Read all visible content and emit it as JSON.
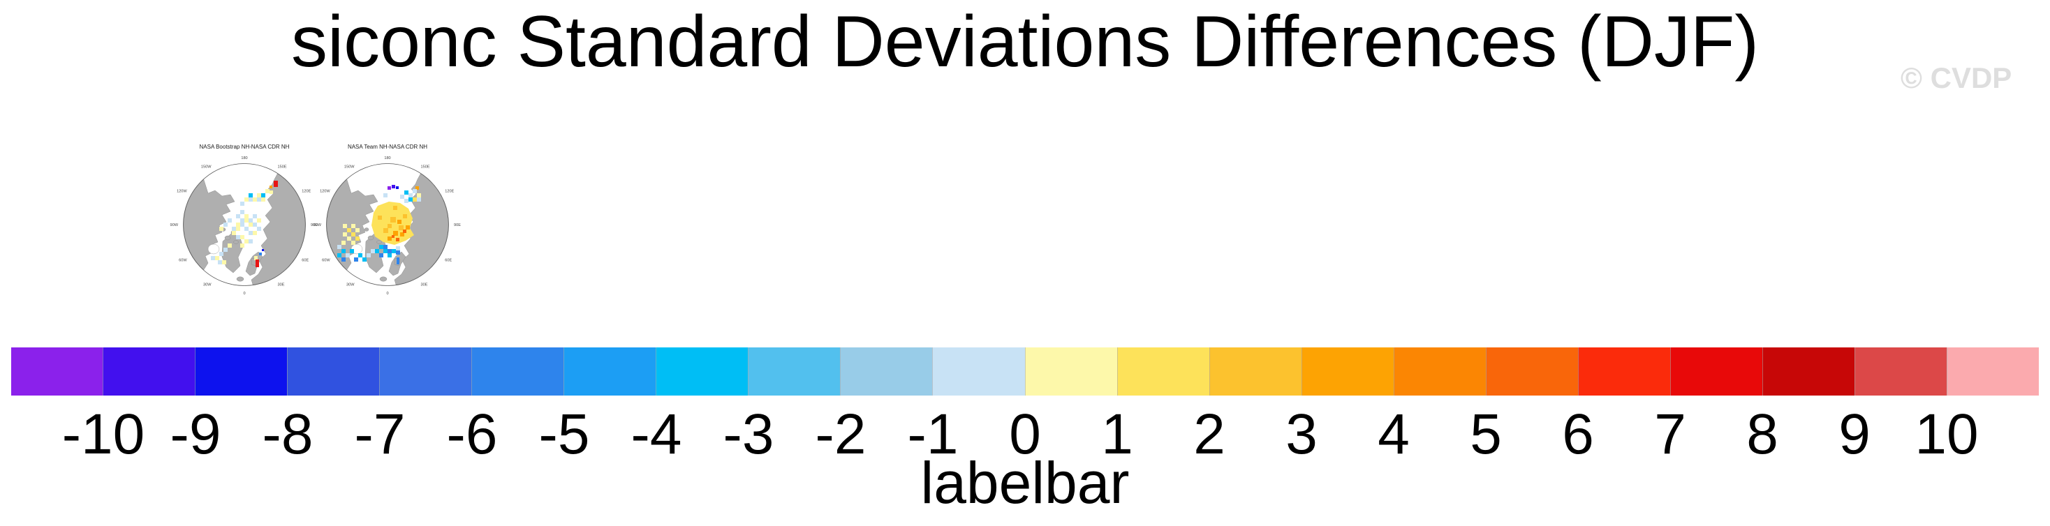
{
  "header": {
    "title": "siconc Standard Deviations Differences (DJF)",
    "watermark": "© CVDP"
  },
  "maps": [
    {
      "title": "NASA Bootstrap NH-NASA CDR NH",
      "lon_labels": [
        "180",
        "150E",
        "120E",
        "90E",
        "60E",
        "30E",
        "0",
        "30W",
        "60W",
        "90W",
        "120W",
        "150W"
      ]
    },
    {
      "title": "NASA Team NH-NASA CDR NH",
      "lon_labels": [
        "180",
        "150E",
        "120E",
        "90E",
        "60E",
        "30E",
        "0",
        "30W",
        "60W",
        "90W",
        "120W",
        "150W"
      ]
    }
  ],
  "colorbar": {
    "label": "labelbar",
    "ticks": [
      "-10",
      "-9",
      "-8",
      "-7",
      "-6",
      "-5",
      "-4",
      "-3",
      "-2",
      "-1",
      "0",
      "1",
      "2",
      "3",
      "4",
      "5",
      "6",
      "7",
      "8",
      "9",
      "10"
    ],
    "colors": [
      "#8B21EB",
      "#4210EE",
      "#0D12EE",
      "#3052E0",
      "#3A70E6",
      "#2E84EC",
      "#1C9EF4",
      "#00BEF5",
      "#52C0EE",
      "#98CCE8",
      "#C8E2F5",
      "#FDF8AA",
      "#FDE25A",
      "#FCC22E",
      "#FDA303",
      "#FB8603",
      "#F9660A",
      "#FB2B0B",
      "#E80909",
      "#C70707",
      "#DC4848",
      "#FBAAAE"
    ]
  },
  "chart_data": {
    "type": "heatmap",
    "title": "siconc Standard Deviations Differences (DJF)",
    "variable": "siconc",
    "season": "DJF",
    "panels": [
      {
        "title": "NASA Bootstrap NH-NASA CDR NH",
        "projection": "north polar stereographic",
        "lon_ticks": [
          "180",
          "150E",
          "120E",
          "90E",
          "60E",
          "30E",
          "0",
          "30W",
          "60W",
          "90W",
          "120W",
          "150W"
        ],
        "value_summary": "Mostly -1 to +1 (pale blue / pale yellow) cells scattered over the central Arctic and Canadian Archipelago; isolated +6 to +8 (red) cells east of Svalbard and near the Chukchi coast."
      },
      {
        "title": "NASA Team NH-NASA CDR NH",
        "projection": "north polar stereographic",
        "lon_ticks": [
          "180",
          "150E",
          "120E",
          "90E",
          "60E",
          "30E",
          "0",
          "30W",
          "60W",
          "90W",
          "120W",
          "150W"
        ],
        "value_summary": "+1 to +5 (yellow-orange) differences across the central Arctic; -2 to -6 (blue) along the Atlantic and Pacific ice edges; isolated -9 to -10 (purple / dark blue) cells near the East Siberian coast."
      }
    ],
    "colorbar": {
      "label": "labelbar",
      "tick_values": [
        -10,
        -9,
        -8,
        -7,
        -6,
        -5,
        -4,
        -3,
        -2,
        -1,
        0,
        1,
        2,
        3,
        4,
        5,
        6,
        7,
        8,
        9,
        10
      ],
      "n_cells": 22,
      "cell_colors": [
        "#8B21EB",
        "#4210EE",
        "#0D12EE",
        "#3052E0",
        "#3A70E6",
        "#2E84EC",
        "#1C9EF4",
        "#00BEF5",
        "#52C0EE",
        "#98CCE8",
        "#C8E2F5",
        "#FDF8AA",
        "#FDE25A",
        "#FCC22E",
        "#FDA303",
        "#FB8603",
        "#F9660A",
        "#FB2B0B",
        "#E80909",
        "#C70707",
        "#DC4848",
        "#FBAAAE"
      ],
      "legend_position": "bottom"
    }
  }
}
